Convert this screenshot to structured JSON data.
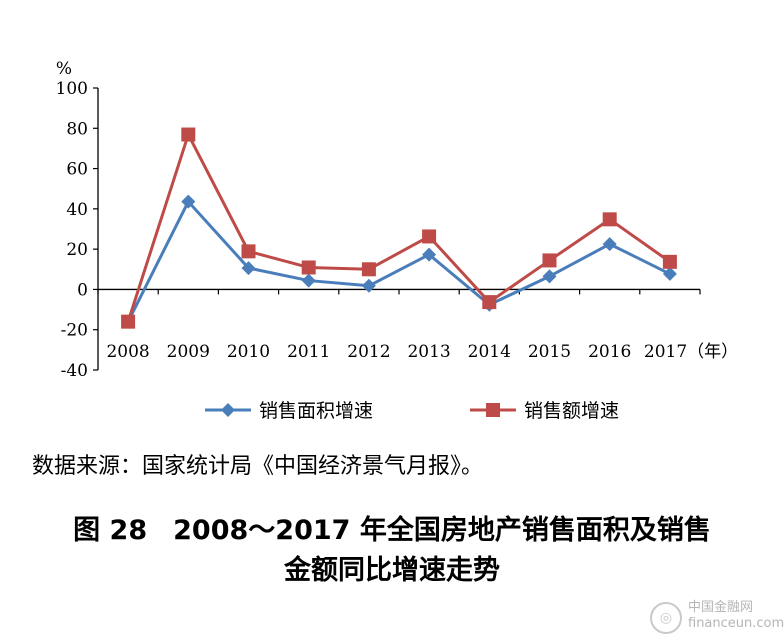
{
  "chart_data": {
    "type": "line",
    "categories": [
      "2008",
      "2009",
      "2010",
      "2011",
      "2012",
      "2013",
      "2014",
      "2015",
      "2016",
      "2017"
    ],
    "x_unit_suffix": "（年）",
    "ylabel": "%",
    "ylim": [
      -40,
      100
    ],
    "yticks": [
      -40,
      -20,
      0,
      20,
      40,
      60,
      80,
      100
    ],
    "grid": false,
    "legend_position": "bottom",
    "series": [
      {
        "name": "销售面积增速",
        "color": "#4a7ebb",
        "marker": "diamond",
        "values": [
          -16,
          43.6,
          10.6,
          4.4,
          1.8,
          17.3,
          -7.6,
          6.5,
          22.5,
          7.7
        ]
      },
      {
        "name": "销售额增速",
        "color": "#be4b48",
        "marker": "square",
        "values": [
          -16,
          76.9,
          18.9,
          10.9,
          10,
          26.3,
          -6.3,
          14.4,
          34.8,
          13.7
        ]
      }
    ]
  },
  "source_text": "数据来源：国家统计局《中国经济景气月报》。",
  "caption": {
    "line1_number": "图 28",
    "line1_text": "2008～2017 年全国房地产销售面积及销售",
    "line2_text": "金额同比增速走势"
  },
  "watermark": {
    "line1": "中国金融网",
    "line2": "financeun.com"
  }
}
